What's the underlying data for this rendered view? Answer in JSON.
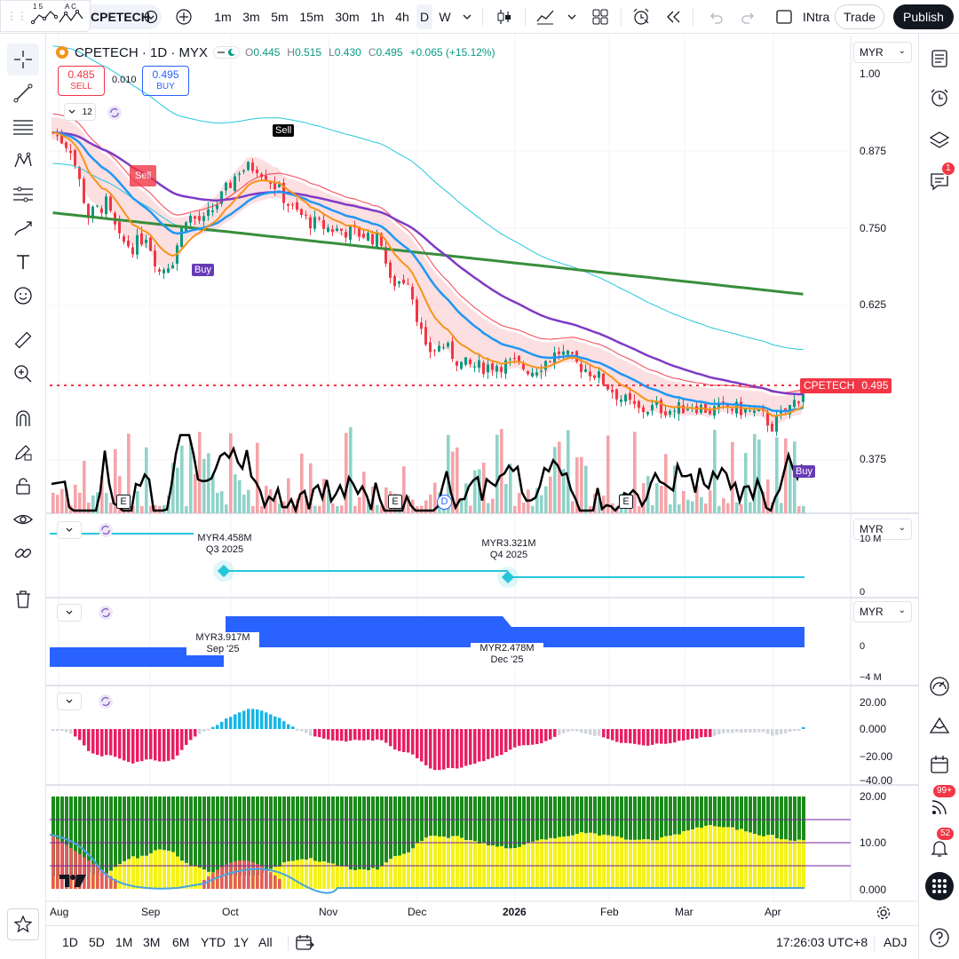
{
  "app": {
    "title": "CPETECH · 1D · MYX"
  },
  "toolbar": {
    "symbol": "CPETECH",
    "intervals": [
      "1m",
      "3m",
      "5m",
      "15m",
      "30m",
      "1h",
      "4h",
      "D",
      "W"
    ],
    "active_interval": "D",
    "layout_name": "INtra",
    "trade_label": "Trade",
    "publish_label": "Publish",
    "small_icon_labels": [
      "1 5",
      "A C"
    ]
  },
  "header": {
    "symbol_line": "CPETECH · 1D · MYX",
    "open_label": "O",
    "open": "0.445",
    "high_label": "H",
    "high": "0.515",
    "low_label": "L",
    "low": "0.430",
    "close_label": "C",
    "close": "0.495",
    "change": "+0.065 (+15.12%)",
    "sell_price": "0.485",
    "sell_label": "SELL",
    "spread": "0.010",
    "buy_price": "0.495",
    "buy_label": "BUY",
    "indicator_count": "12"
  },
  "currency": "MYR",
  "price_axis": [
    "1.00",
    "0.875",
    "0.750",
    "0.625",
    "0.375"
  ],
  "price_tag": {
    "symbol": "CPETECH",
    "price": "0.495"
  },
  "signals": {
    "sell": "Sell",
    "buy": "Buy"
  },
  "earnings_marker": "E",
  "dividend_marker": "D",
  "pane_revenue": {
    "points": [
      {
        "value": "MYR4.458M",
        "period": "Q3 2025"
      },
      {
        "value": "MYR3.321M",
        "period": "Q4 2025"
      }
    ],
    "axis": [
      "10 M",
      "0"
    ]
  },
  "pane_income": {
    "points": [
      {
        "value": "MYR3.917M",
        "period": "Sep '25"
      },
      {
        "value": "MYR2.478M",
        "period": "Dec '25"
      }
    ],
    "axis": [
      "0",
      "−4 M"
    ]
  },
  "pane_momentum": {
    "axis": [
      "20.00",
      "0.000",
      "−20.00",
      "−40.00"
    ]
  },
  "pane_dmi": {
    "axis": [
      "20.00",
      "10.00",
      "0.000"
    ]
  },
  "time_axis": [
    "Aug",
    "Sep",
    "Oct",
    "Nov",
    "Dec",
    "2026",
    "Feb",
    "Mar",
    "Apr"
  ],
  "bottom": {
    "ranges": [
      "1D",
      "5D",
      "1M",
      "3M",
      "6M",
      "YTD",
      "1Y",
      "All"
    ],
    "clock": "17:26:03 UTC+8",
    "adj": "ADJ"
  },
  "right_badges": {
    "ideas": "1",
    "news": "99+",
    "alerts": "52"
  },
  "colors": {
    "up": "#089981",
    "down": "#f23645",
    "accent": "#2962ff",
    "ema_fast": "#f7931a",
    "ema_mid": "#2196f3",
    "ema_slow": "#7e3bc4",
    "sma_long": "#388e3c",
    "band": "#26c6da"
  }
}
